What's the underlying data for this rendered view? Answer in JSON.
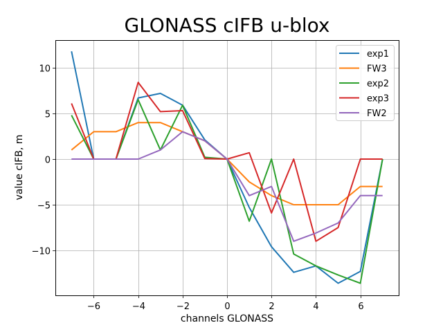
{
  "chart_data": {
    "type": "line",
    "title": "GLONASS cIFB u-blox",
    "xlabel": "channels GLONASS",
    "ylabel": "value cIFB, m",
    "x": [
      -7,
      -6,
      -5,
      -4,
      -3,
      -2,
      -1,
      0,
      1,
      2,
      3,
      4,
      5,
      6,
      7
    ],
    "xlim": [
      -7.7,
      7.7
    ],
    "ylim": [
      -14.8,
      13.0
    ],
    "xticks": [
      -6,
      -4,
      -2,
      0,
      2,
      4,
      6
    ],
    "xtick_labels": [
      "−6",
      "−4",
      "−2",
      "0",
      "2",
      "4",
      "6"
    ],
    "yticks": [
      -10,
      -5,
      0,
      5,
      10
    ],
    "ytick_labels": [
      "−10",
      "−5",
      "0",
      "5",
      "10"
    ],
    "grid": true,
    "legend_position": "upper right",
    "series": [
      {
        "name": "exp1",
        "color": "#1f77b4",
        "values": [
          11.8,
          0,
          0,
          6.7,
          7.2,
          5.9,
          2.1,
          0,
          -5.3,
          -9.6,
          -12.4,
          -11.7,
          -13.6,
          -12.3,
          0
        ]
      },
      {
        "name": "FW3",
        "color": "#ff7f0e",
        "values": [
          1,
          3,
          3,
          4,
          4,
          3,
          2,
          0,
          -2.5,
          -4,
          -5,
          -5,
          -5,
          -3,
          -3
        ]
      },
      {
        "name": "exp2",
        "color": "#2ca02c",
        "values": [
          4.8,
          0,
          0,
          6.5,
          1.0,
          5.9,
          0.2,
          0,
          -6.8,
          0,
          -10.4,
          -11.7,
          -12.7,
          -13.6,
          0
        ]
      },
      {
        "name": "exp3",
        "color": "#d62728",
        "values": [
          6.1,
          0,
          0,
          8.4,
          5.2,
          5.3,
          0.05,
          0,
          0.7,
          -5.9,
          0,
          -9.0,
          -7.5,
          0,
          0
        ]
      },
      {
        "name": "FW2",
        "color": "#9467bd",
        "values": [
          0,
          0,
          0,
          0,
          1.0,
          3.0,
          2.0,
          0,
          -4.0,
          -3.0,
          -9.0,
          -8.1,
          -7.0,
          -4.0,
          -4.0
        ]
      }
    ]
  }
}
